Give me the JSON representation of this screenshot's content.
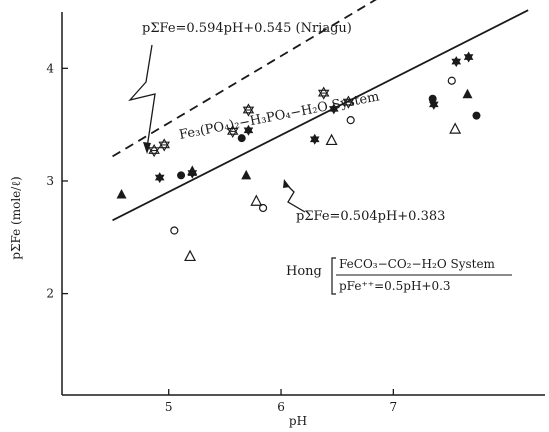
{
  "chart_data": {
    "type": "scatter",
    "xlabel": "pH",
    "ylabel": "pΣFe (mole/ℓ)",
    "xlim": [
      4.05,
      8.35
    ],
    "ylim": [
      1.1,
      4.5
    ],
    "x_ticks": [
      "5",
      "6",
      "7"
    ],
    "y_ticks": [
      "2",
      "3",
      "4"
    ],
    "grid": false,
    "lines": [
      {
        "label": "pΣFe=0.594pH+0.545 (Nriagu)",
        "slope": 0.594,
        "intercept": 0.545,
        "x_range": [
          4.5,
          8.2
        ],
        "style": "dashed"
      },
      {
        "label": "pΣFe=0.504pH+0.383",
        "slope": 0.504,
        "intercept": 0.383,
        "x_range": [
          4.5,
          8.2
        ],
        "style": "solid"
      }
    ],
    "annotations": {
      "phosphate_system": "Fe₃(PO₄)₂−H₃PO₄−H₂O System",
      "hong_label": "Hong",
      "hong_system": "FeCO₃−CO₂−H₂O System",
      "hong_equation": "pFe⁺⁺=0.5pH+0.3"
    },
    "points": [
      {
        "marker": "star-open",
        "x": 4.87,
        "y": 3.27
      },
      {
        "marker": "star-open",
        "x": 4.96,
        "y": 3.32
      },
      {
        "marker": "star-open",
        "x": 5.57,
        "y": 3.44
      },
      {
        "marker": "star-open",
        "x": 5.71,
        "y": 3.63
      },
      {
        "marker": "star-open",
        "x": 6.38,
        "y": 3.78
      },
      {
        "marker": "star-open",
        "x": 6.6,
        "y": 3.7
      },
      {
        "marker": "star-filled",
        "x": 4.92,
        "y": 3.03
      },
      {
        "marker": "star-filled",
        "x": 5.21,
        "y": 3.07
      },
      {
        "marker": "star-filled",
        "x": 5.71,
        "y": 3.45
      },
      {
        "marker": "star-filled",
        "x": 6.3,
        "y": 3.37
      },
      {
        "marker": "star-filled",
        "x": 6.47,
        "y": 3.64
      },
      {
        "marker": "star-filled",
        "x": 7.36,
        "y": 3.68
      },
      {
        "marker": "star-filled",
        "x": 7.56,
        "y": 4.06
      },
      {
        "marker": "star-filled",
        "x": 7.67,
        "y": 4.1
      },
      {
        "marker": "triangle-filled",
        "x": 4.58,
        "y": 2.88
      },
      {
        "marker": "triangle-filled",
        "x": 5.21,
        "y": 3.09
      },
      {
        "marker": "triangle-filled",
        "x": 5.69,
        "y": 3.05
      },
      {
        "marker": "triangle-filled",
        "x": 7.66,
        "y": 3.77
      },
      {
        "marker": "circle-filled",
        "x": 5.11,
        "y": 3.05
      },
      {
        "marker": "circle-filled",
        "x": 5.65,
        "y": 3.38
      },
      {
        "marker": "circle-filled",
        "x": 7.35,
        "y": 3.73
      },
      {
        "marker": "circle-filled",
        "x": 7.74,
        "y": 3.58
      },
      {
        "marker": "circle-open",
        "x": 5.05,
        "y": 2.56
      },
      {
        "marker": "circle-open",
        "x": 5.84,
        "y": 2.76
      },
      {
        "marker": "circle-open",
        "x": 6.62,
        "y": 3.54
      },
      {
        "marker": "circle-open",
        "x": 7.52,
        "y": 3.89
      },
      {
        "marker": "triangle-open",
        "x": 5.19,
        "y": 2.33
      },
      {
        "marker": "triangle-open",
        "x": 5.78,
        "y": 2.82
      },
      {
        "marker": "triangle-open",
        "x": 6.45,
        "y": 3.36
      },
      {
        "marker": "triangle-open",
        "x": 7.55,
        "y": 3.46
      }
    ]
  }
}
